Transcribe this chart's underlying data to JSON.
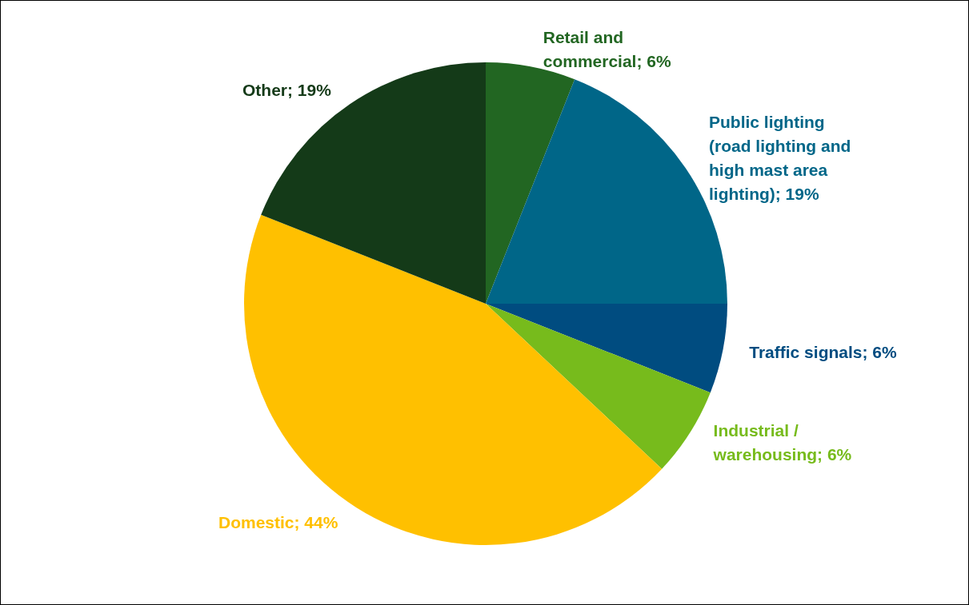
{
  "chart_data": {
    "type": "pie",
    "categories": [
      "Retail and commercial",
      "Public lighting (road lighting and high mast area lighting)",
      "Traffic signals",
      "Industrial / warehousing",
      "Domestic",
      "Other"
    ],
    "values": [
      6,
      19,
      6,
      6,
      44,
      19
    ],
    "colors": [
      "#226622",
      "#006688",
      "#004c80",
      "#77bb1c",
      "#ffc000",
      "#143a18"
    ],
    "value_labels": [
      "6%",
      "19%",
      "6%",
      "6%",
      "44%",
      "19%"
    ],
    "legend": false
  }
}
